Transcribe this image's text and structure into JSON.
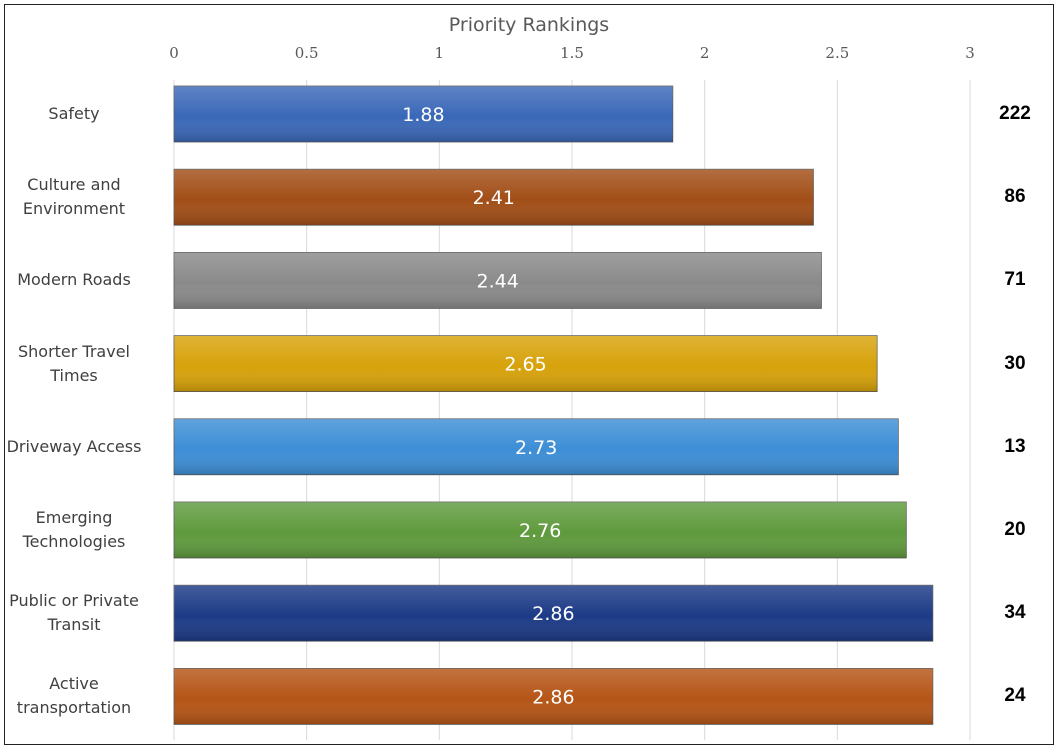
{
  "chart_data": {
    "type": "bar",
    "orientation": "horizontal",
    "title": "Priority Rankings",
    "xlim": [
      0,
      3
    ],
    "x_ticks": [
      "0",
      "0.5",
      "1",
      "1.5",
      "2",
      "2.5",
      "3"
    ],
    "x_tick_values": [
      0,
      0.5,
      1,
      1.5,
      2,
      2.5,
      3
    ],
    "grid": true,
    "categories": [
      "Safety",
      "Culture and\nEnvironment",
      "Modern Roads",
      "Shorter Travel\nTimes",
      "Driveway Access",
      "Emerging\nTechnologies",
      "Public or Private\nTransit",
      "Active\ntransportation"
    ],
    "values": [
      1.88,
      2.41,
      2.44,
      2.65,
      2.73,
      2.76,
      2.86,
      2.86
    ],
    "value_labels": [
      "1.88",
      "2.41",
      "2.44",
      "2.65",
      "2.73",
      "2.76",
      "2.86",
      "2.86"
    ],
    "colors": [
      "#3a68b8",
      "#a24e17",
      "#8a8a8a",
      "#d7a20a",
      "#3d8ed6",
      "#5f9a3d",
      "#1c3a86",
      "#b55516"
    ],
    "counts": [
      "222",
      "86",
      "71",
      "30",
      "13",
      "20",
      "34",
      "24"
    ]
  }
}
